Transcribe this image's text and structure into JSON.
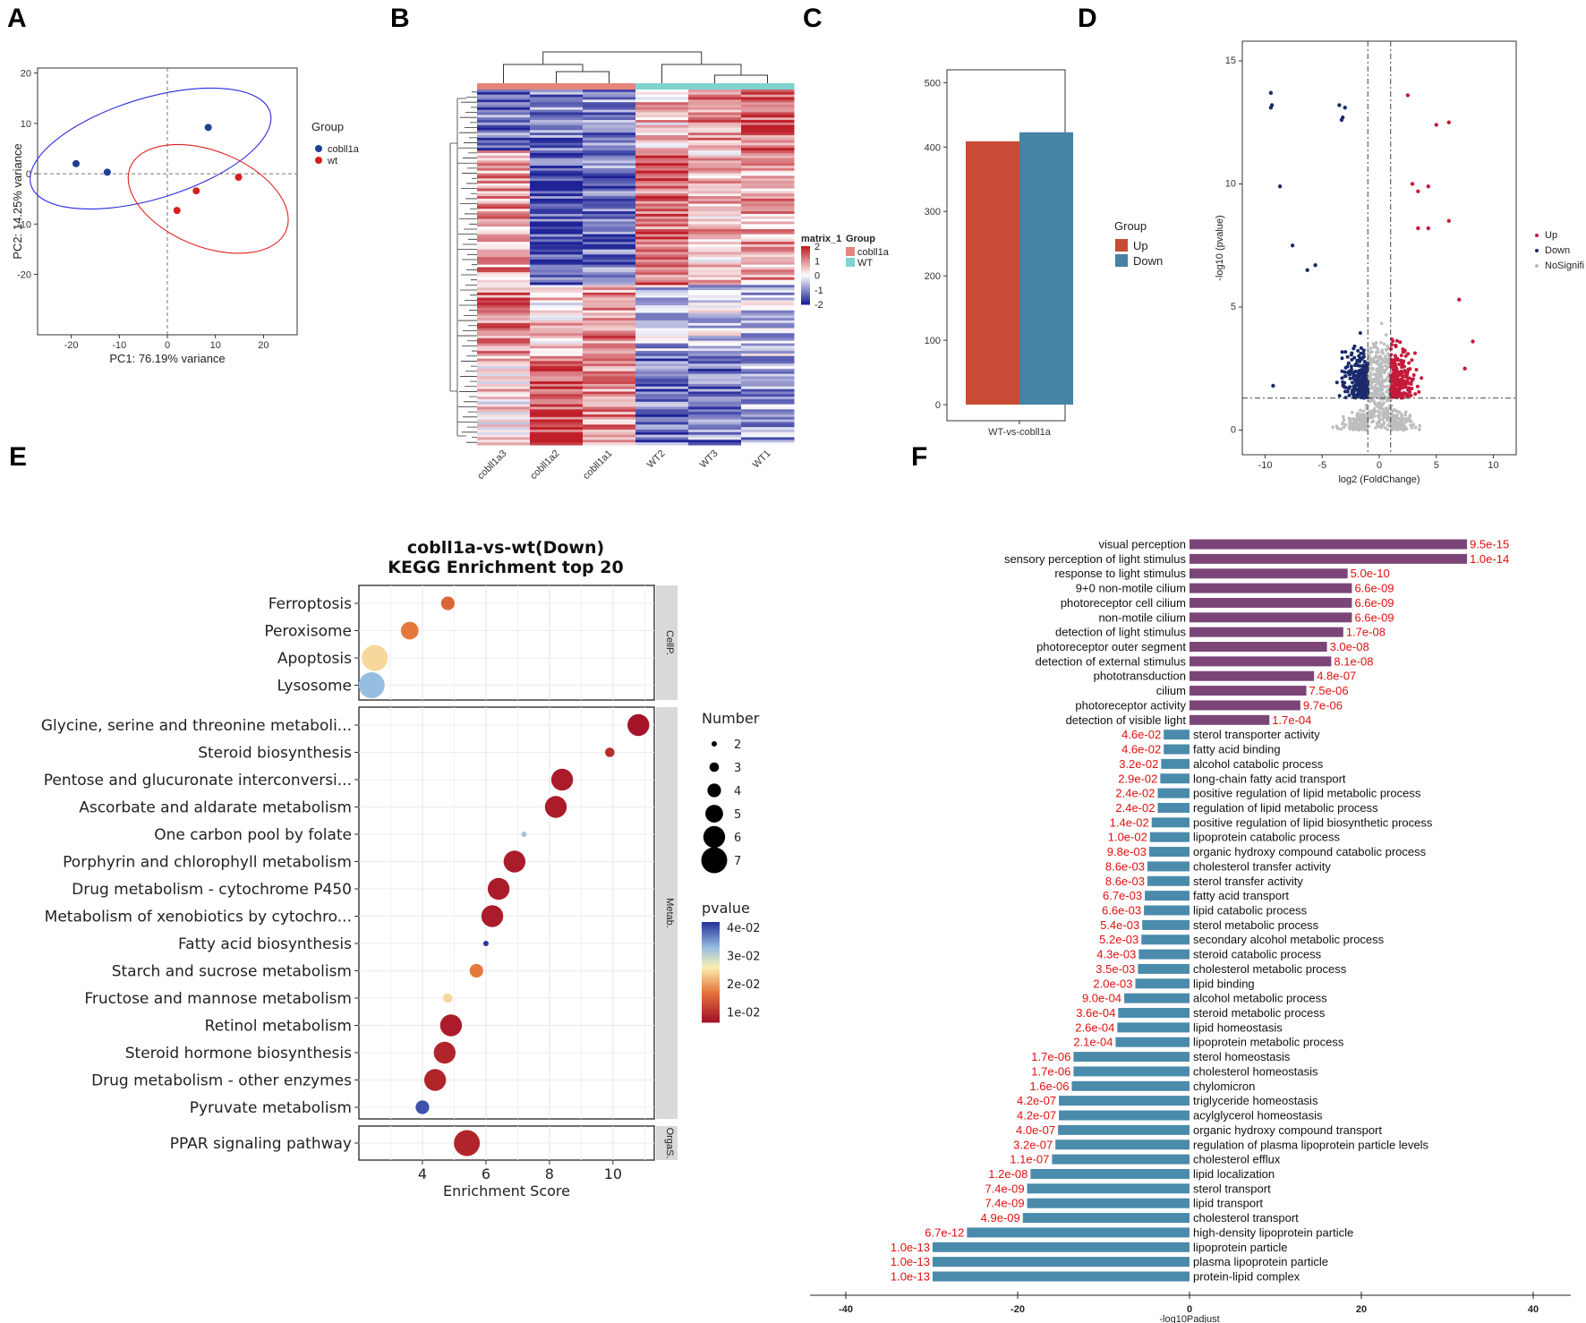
{
  "panels": [
    "A",
    "B",
    "C",
    "D",
    "E",
    "F"
  ],
  "colors": {
    "up": "#c84b36",
    "down": "#4683a4",
    "pca_cob": "#1f3f91",
    "pca_wt": "#d61f1f",
    "volc_up": "#c51b3b",
    "volc_down": "#1a2a6c",
    "volc_ns": "#bdbdbd",
    "f_purple": "#7b4677",
    "f_blue": "#4a8bab",
    "f_val": "#e01010"
  },
  "chart_data": [
    {
      "id": "A",
      "type": "scatter",
      "xlabel": "PC1: 76.19% variance",
      "ylabel": "PC2: 14.25% variance",
      "xlim": [
        -27,
        27
      ],
      "ylim": [
        -32,
        21
      ],
      "xticks": [
        -20,
        -10,
        0,
        10,
        20
      ],
      "yticks": [
        -20,
        -10,
        0,
        10,
        20
      ],
      "legend_title": "Group",
      "series": [
        {
          "name": "cobll1a",
          "color": "#1f3f91",
          "points": [
            [
              -19,
              2
            ],
            [
              -12.5,
              0.3
            ],
            [
              8.5,
              9.2
            ]
          ],
          "ellipse": {
            "cx": -3.5,
            "cy": 5,
            "rx": 26,
            "ry": 10,
            "angle": -17
          }
        },
        {
          "name": "wt",
          "color": "#d61f1f",
          "points": [
            [
              2,
              -7.3
            ],
            [
              6,
              -3.4
            ],
            [
              14.8,
              -0.7
            ]
          ],
          "ellipse": {
            "cx": 8.5,
            "cy": -5,
            "rx": 17.5,
            "ry": 9.5,
            "angle": 22
          }
        }
      ]
    },
    {
      "id": "B",
      "type": "heatmap",
      "columns": [
        "cobll1a3",
        "cobll1a2",
        "cobll1a1",
        "WT2",
        "WT3",
        "WT1"
      ],
      "column_groups": [
        "cobll1a",
        "cobll1a",
        "cobll1a",
        "WT",
        "WT",
        "WT"
      ],
      "group_colors": {
        "cobll1a": "#e4857c",
        "WT": "#7fd3cf"
      },
      "scale_title": "matrix_1",
      "scale_ticks": [
        2,
        1,
        0,
        -1,
        -2
      ],
      "legend_title": "Group",
      "legend_items": [
        "cobll1a",
        "WT"
      ],
      "block_pattern": [
        {
          "rows": 0.17,
          "values": [
            -1.2,
            -1.1,
            -1.0,
            0.5,
            1.0,
            1.4
          ]
        },
        {
          "rows": 0.38,
          "values": [
            0.9,
            -1.6,
            -1.2,
            1.3,
            0.6,
            0.8
          ]
        },
        {
          "rows": 0.2,
          "values": [
            1.1,
            0.4,
            1.0,
            -0.6,
            -0.4,
            -0.5
          ]
        },
        {
          "rows": 0.25,
          "values": [
            0.3,
            1.5,
            0.9,
            -1.3,
            -1.1,
            -0.8
          ]
        }
      ]
    },
    {
      "id": "C",
      "type": "bar",
      "categories": [
        "WT-vs-cobll1a"
      ],
      "series": [
        {
          "name": "Up",
          "values": [
            409
          ]
        },
        {
          "name": "Down",
          "values": [
            423
          ]
        }
      ],
      "ylim": [
        -25,
        520
      ],
      "yticks": [
        0,
        100,
        200,
        300,
        400,
        500
      ],
      "legend_title": "Group",
      "xlabel": "WT-vs-cobll1a"
    },
    {
      "id": "D",
      "type": "scatter",
      "xlabel": "log2 (FoldChange)",
      "ylabel": "-log10 (pvalue)",
      "xlim": [
        -12,
        12
      ],
      "ylim": [
        -1,
        15.8
      ],
      "xticks": [
        -10,
        -5,
        0,
        5,
        10
      ],
      "yticks": [
        0,
        5,
        10,
        15
      ],
      "thresholds": {
        "fc": [
          -1,
          1
        ],
        "p": 1.3
      },
      "legend": [
        "Up",
        "Down",
        "NoSignifi"
      ],
      "highlights_down": [
        [
          -9.5,
          13.7
        ],
        [
          -9.4,
          13.2
        ],
        [
          -9.5,
          13.1
        ],
        [
          -3.5,
          13.2
        ],
        [
          -3.2,
          12.7
        ],
        [
          -3,
          13.1
        ],
        [
          -3.3,
          12.6
        ],
        [
          -8.7,
          9.9
        ],
        [
          -7.6,
          7.5
        ],
        [
          -9.3,
          1.8
        ],
        [
          -6.3,
          6.5
        ],
        [
          -5.6,
          6.7
        ]
      ],
      "highlights_up": [
        [
          2.5,
          13.6
        ],
        [
          5,
          12.4
        ],
        [
          6.1,
          12.5
        ],
        [
          6.1,
          8.5
        ],
        [
          7,
          5.3
        ],
        [
          8.2,
          3.6
        ],
        [
          7.5,
          2.5
        ],
        [
          2.9,
          10
        ],
        [
          3.4,
          9.7
        ],
        [
          4.3,
          9.9
        ],
        [
          3.4,
          8.2
        ],
        [
          4.3,
          8.2
        ]
      ]
    },
    {
      "id": "E",
      "type": "scatter",
      "title": "cobll1a-vs-wt(Down)\nKEGG Enrichment top 20",
      "xlabel": "Enrichment Score",
      "xlim": [
        2,
        11.3
      ],
      "xticks": [
        4,
        6,
        8,
        10
      ],
      "facets": [
        {
          "name": "CellP.",
          "items": [
            {
              "term": "Ferroptosis",
              "score": 4.8,
              "number": 4,
              "pvalue": 0.012
            },
            {
              "term": "Peroxisome",
              "score": 3.6,
              "number": 5,
              "pvalue": 0.014
            },
            {
              "term": "Apoptosis",
              "score": 2.5,
              "number": 7,
              "pvalue": 0.022
            },
            {
              "term": "Lysosome",
              "score": 2.4,
              "number": 7,
              "pvalue": 0.032
            }
          ]
        },
        {
          "name": "Metab.",
          "items": [
            {
              "term": "Glycine, serine and threonine metaboli...",
              "score": 10.8,
              "number": 6,
              "pvalue": 0.002
            },
            {
              "term": "Steroid biosynthesis",
              "score": 9.9,
              "number": 3,
              "pvalue": 0.005
            },
            {
              "term": "Pentose and glucuronate interconversi...",
              "score": 8.4,
              "number": 6,
              "pvalue": 0.003
            },
            {
              "term": "Ascorbate and aldarate metabolism",
              "score": 8.2,
              "number": 6,
              "pvalue": 0.003
            },
            {
              "term": "One carbon pool by folate",
              "score": 7.2,
              "number": 2,
              "pvalue": 0.031
            },
            {
              "term": "Porphyrin and chlorophyll metabolism",
              "score": 6.9,
              "number": 6,
              "pvalue": 0.003
            },
            {
              "term": "Drug metabolism - cytochrome P450",
              "score": 6.4,
              "number": 6,
              "pvalue": 0.003
            },
            {
              "term": "Metabolism of xenobiotics by cytochro...",
              "score": 6.2,
              "number": 6,
              "pvalue": 0.003
            },
            {
              "term": "Fatty acid biosynthesis",
              "score": 6.0,
              "number": 2,
              "pvalue": 0.042
            },
            {
              "term": "Starch and sucrose metabolism",
              "score": 5.7,
              "number": 4,
              "pvalue": 0.014
            },
            {
              "term": "Fructose and mannose metabolism",
              "score": 4.8,
              "number": 3,
              "pvalue": 0.022
            },
            {
              "term": "Retinol metabolism",
              "score": 4.9,
              "number": 6,
              "pvalue": 0.003
            },
            {
              "term": "Steroid hormone biosynthesis",
              "score": 4.7,
              "number": 6,
              "pvalue": 0.004
            },
            {
              "term": "Drug metabolism - other enzymes",
              "score": 4.4,
              "number": 6,
              "pvalue": 0.004
            },
            {
              "term": "Pyruvate metabolism",
              "score": 4.0,
              "number": 4,
              "pvalue": 0.04
            }
          ]
        },
        {
          "name": "OrgaS.",
          "items": [
            {
              "term": "PPAR signaling pathway",
              "score": 5.4,
              "number": 7,
              "pvalue": 0.004
            }
          ]
        }
      ],
      "size_legend": {
        "title": "Number",
        "values": [
          2,
          3,
          4,
          5,
          6,
          7
        ]
      },
      "color_legend": {
        "title": "pvalue",
        "ticks": [
          "4e-02",
          "3e-02",
          "2e-02",
          "1e-02"
        ]
      }
    },
    {
      "id": "F",
      "type": "bar",
      "xlabel": "-log10Padjust",
      "xlim": [
        -45,
        45
      ],
      "xticks": [
        -40,
        -20,
        0,
        20,
        40
      ],
      "bars": [
        {
          "term": "visual perception",
          "value": 32.3,
          "label": "9.5e-15"
        },
        {
          "term": "sensory perception of light stimulus",
          "value": 32.3,
          "label": "1.0e-14"
        },
        {
          "term": "response to light stimulus",
          "value": 18.4,
          "label": "5.0e-10"
        },
        {
          "term": "9+0 non-motile cilium",
          "value": 18.9,
          "label": "6.6e-09"
        },
        {
          "term": "photoreceptor cell cilium",
          "value": 18.9,
          "label": "6.6e-09"
        },
        {
          "term": "non-motile cilium",
          "value": 18.9,
          "label": "6.6e-09"
        },
        {
          "term": "detection of light stimulus",
          "value": 17.9,
          "label": "1.7e-08"
        },
        {
          "term": "photoreceptor outer segment",
          "value": 16.0,
          "label": "3.0e-08"
        },
        {
          "term": "detection of external stimulus",
          "value": 16.5,
          "label": "8.1e-08"
        },
        {
          "term": "phototransduction",
          "value": 14.5,
          "label": "4.8e-07"
        },
        {
          "term": "cilium",
          "value": 13.6,
          "label": "7.5e-06"
        },
        {
          "term": "photoreceptor activity",
          "value": 12.9,
          "label": "9.7e-06"
        },
        {
          "term": "detection of visible light",
          "value": 9.3,
          "label": "1.7e-04"
        },
        {
          "term": "sterol transporter activity",
          "value": -3.0,
          "label": "4.6e-02"
        },
        {
          "term": "fatty acid binding",
          "value": -3.0,
          "label": "4.6e-02"
        },
        {
          "term": "alcohol catabolic process",
          "value": -3.3,
          "label": "3.2e-02"
        },
        {
          "term": "long-chain fatty acid transport",
          "value": -3.4,
          "label": "2.9e-02"
        },
        {
          "term": "positive regulation of lipid metabolic process",
          "value": -3.7,
          "label": "2.4e-02"
        },
        {
          "term": "regulation of lipid metabolic process",
          "value": -3.7,
          "label": "2.4e-02"
        },
        {
          "term": "positive regulation of lipid biosynthetic process",
          "value": -4.4,
          "label": "1.4e-02"
        },
        {
          "term": "lipoprotein catabolic process",
          "value": -4.6,
          "label": "1.0e-02"
        },
        {
          "term": "organic hydroxy compound catabolic process",
          "value": -4.7,
          "label": "9.8e-03"
        },
        {
          "term": "cholesterol transfer activity",
          "value": -4.9,
          "label": "8.6e-03"
        },
        {
          "term": "sterol transfer activity",
          "value": -4.9,
          "label": "8.6e-03"
        },
        {
          "term": "fatty acid transport",
          "value": -5.2,
          "label": "6.7e-03"
        },
        {
          "term": "lipid catabolic process",
          "value": -5.3,
          "label": "6.6e-03"
        },
        {
          "term": "sterol metabolic process",
          "value": -5.5,
          "label": "5.4e-03"
        },
        {
          "term": "secondary alcohol metabolic process",
          "value": -5.6,
          "label": "5.2e-03"
        },
        {
          "term": "steroid catabolic process",
          "value": -5.9,
          "label": "4.3e-03"
        },
        {
          "term": "cholesterol metabolic process",
          "value": -6.0,
          "label": "3.5e-03"
        },
        {
          "term": "lipid binding",
          "value": -6.3,
          "label": "2.0e-03"
        },
        {
          "term": "alcohol metabolic process",
          "value": -7.6,
          "label": "9.0e-04"
        },
        {
          "term": "steroid metabolic process",
          "value": -8.3,
          "label": "3.6e-04"
        },
        {
          "term": "lipid homeostasis",
          "value": -8.4,
          "label": "2.6e-04"
        },
        {
          "term": "lipoprotein metabolic process",
          "value": -8.6,
          "label": "2.1e-04"
        },
        {
          "term": "sterol homeostasis",
          "value": -13.5,
          "label": "1.7e-06"
        },
        {
          "term": "cholesterol homeostasis",
          "value": -13.5,
          "label": "1.7e-06"
        },
        {
          "term": "chylomicron",
          "value": -13.7,
          "label": "1.6e-06"
        },
        {
          "term": "triglyceride homeostasis",
          "value": -15.2,
          "label": "4.2e-07"
        },
        {
          "term": "acylglycerol homeostasis",
          "value": -15.2,
          "label": "4.2e-07"
        },
        {
          "term": "organic hydroxy compound transport",
          "value": -15.3,
          "label": "4.0e-07"
        },
        {
          "term": "regulation of plasma lipoprotein particle levels",
          "value": -15.6,
          "label": "3.2e-07"
        },
        {
          "term": "cholesterol efflux",
          "value": -16.0,
          "label": "1.1e-07"
        },
        {
          "term": "lipid localization",
          "value": -18.5,
          "label": "1.2e-08"
        },
        {
          "term": "sterol transport",
          "value": -18.9,
          "label": "7.4e-09"
        },
        {
          "term": "lipid transport",
          "value": -18.9,
          "label": "7.4e-09"
        },
        {
          "term": "cholesterol transport",
          "value": -19.4,
          "label": "4.9e-09"
        },
        {
          "term": "high-density lipoprotein particle",
          "value": -25.9,
          "label": "6.7e-12"
        },
        {
          "term": "lipoprotein particle",
          "value": -29.9,
          "label": "1.0e-13"
        },
        {
          "term": "plasma lipoprotein particle",
          "value": -29.9,
          "label": "1.0e-13"
        },
        {
          "term": "protein-lipid complex",
          "value": -29.9,
          "label": "1.0e-13"
        }
      ]
    }
  ]
}
